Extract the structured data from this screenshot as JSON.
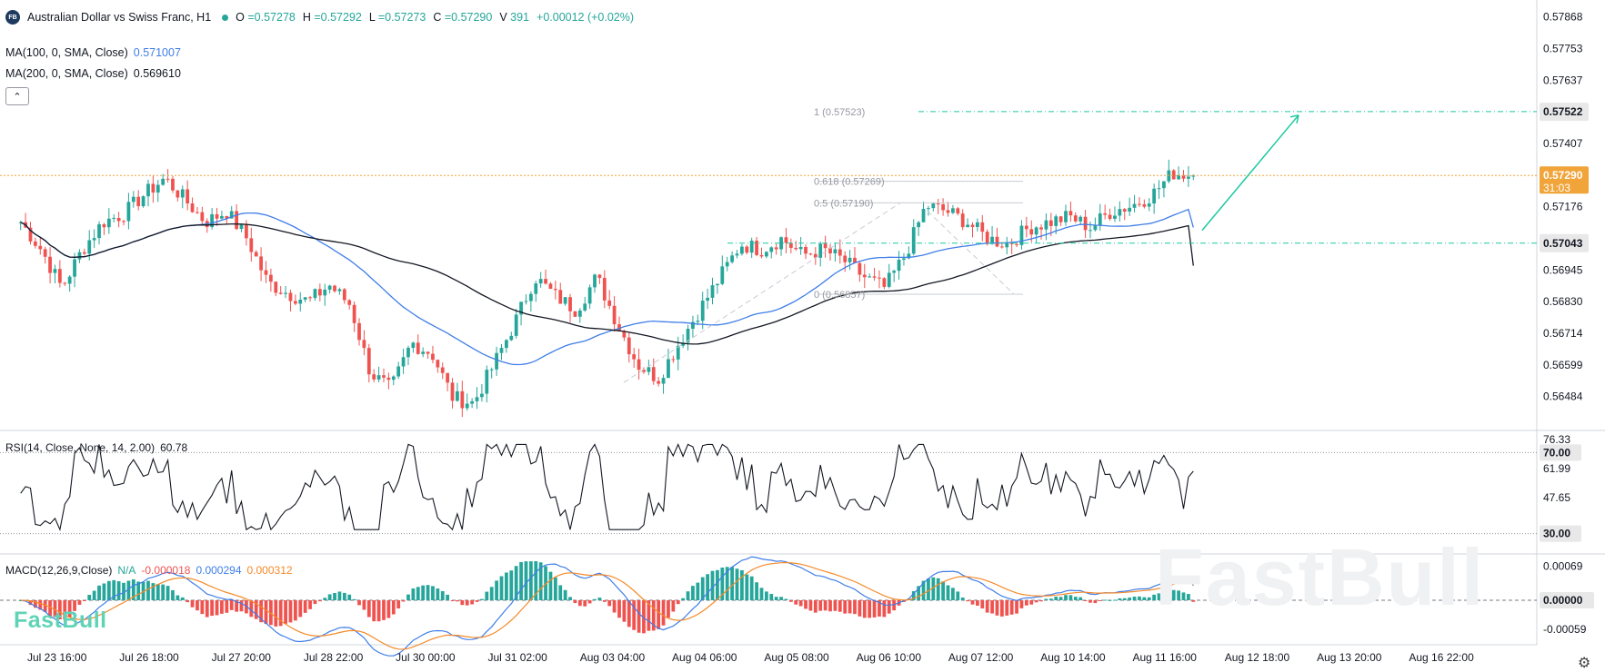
{
  "header": {
    "symbol_badge": "FB",
    "title": "Australian Dollar vs Swiss Franc, H1",
    "o_label": "O",
    "o_value": "=0.57278",
    "h_label": "H",
    "h_value": "=0.57292",
    "l_label": "L",
    "l_value": "=0.57273",
    "c_label": "C",
    "c_value": "=0.57290",
    "v_label": "V",
    "v_value": "391",
    "change": "+0.00012 (+0.02%)"
  },
  "indicators": {
    "ma100_label": "MA(100, 0, SMA, Close)",
    "ma100_value": "0.571007",
    "ma200_label": "MA(200, 0, SMA, Close)",
    "ma200_value": "0.569610",
    "collapse_icon": "chevron-up-icon",
    "rsi_label": "RSI(14, Close, None, 14, 2.00)",
    "rsi_value": "60.78",
    "macd_label": "MACD(12,26,9,Close)",
    "macd_na": "N/A",
    "macd_v1": "-0.000018",
    "macd_v2": "0.000294",
    "macd_v3": "0.000312"
  },
  "watermark": "FastBull",
  "big_watermark": "FastBull",
  "settings_icon": "gear-icon",
  "colors": {
    "up": "#26a69a",
    "down": "#ef5350",
    "ma100": "#3f7ee8",
    "ma200": "#131722",
    "fib": "#1cc9a0",
    "current": "#f0a43a",
    "macd_line": "#3f7ee8",
    "signal_line": "#f58a2a"
  },
  "chart_data": [
    {
      "type": "candlestick",
      "title": "Australian Dollar vs Swiss Franc, H1",
      "price_axis_ticks": [
        "0.57868",
        "0.57753",
        "0.57637",
        "0.57407",
        "0.57176",
        "0.56945",
        "0.56830",
        "0.56714",
        "0.56599",
        "0.56484"
      ],
      "ylim": [
        0.5636,
        0.5793
      ],
      "time_axis_labels": [
        "Jul 23 16:00",
        "Jul 26 18:00",
        "Jul 27 20:00",
        "Jul 28 22:00",
        "Jul 30 00:00",
        "Jul 31 02:00",
        "Aug 03 04:00",
        "Aug 04 06:00",
        "Aug 05 08:00",
        "Aug 06 10:00",
        "Aug 07 12:00",
        "Aug 10 14:00",
        "Aug 11 16:00",
        "Aug 12 18:00",
        "Aug 13 20:00",
        "Aug 16 22:00"
      ],
      "price_tags": [
        {
          "text": "0.57522",
          "kind": "fib"
        },
        {
          "text": "0.57290",
          "sub": "31:03",
          "kind": "current"
        },
        {
          "text": "0.57043",
          "kind": "fib"
        }
      ],
      "fib_labels": [
        {
          "text": "1 (0.57523)",
          "price": 0.57523
        },
        {
          "text": "0.618 (0.57269)",
          "price": 0.57269
        },
        {
          "text": "0.5 (0.57190)",
          "price": 0.5719
        },
        {
          "text": "0 (0.56857)",
          "price": 0.56857
        }
      ],
      "ma100_last": 0.571007,
      "ma200_last": 0.56961,
      "close_last": 0.5729,
      "trajectory_shape": [
        0.5712,
        0.5702,
        0.5688,
        0.5702,
        0.5712,
        0.5715,
        0.5722,
        0.5728,
        0.572,
        0.5712,
        0.5716,
        0.5706,
        0.569,
        0.5686,
        0.5683,
        0.5689,
        0.5682,
        0.5657,
        0.5651,
        0.5668,
        0.5664,
        0.5648,
        0.5646,
        0.566,
        0.5675,
        0.5692,
        0.5685,
        0.568,
        0.5692,
        0.5675,
        0.566,
        0.5655,
        0.5668,
        0.568,
        0.5692,
        0.5704,
        0.5702,
        0.5706,
        0.57,
        0.5702,
        0.5698,
        0.5692,
        0.5688,
        0.57,
        0.5718,
        0.5716,
        0.5712,
        0.5706,
        0.5704,
        0.571,
        0.5712,
        0.5714,
        0.571,
        0.5716,
        0.5718,
        0.5722,
        0.573,
        0.5729
      ]
    },
    {
      "type": "line",
      "title": "RSI(14, Close, None, 14, 2.00)",
      "axis_ticks": [
        "76.33",
        "61.99",
        "47.65"
      ],
      "levels": [
        "70.00",
        "30.00"
      ],
      "last": 60.78
    },
    {
      "type": "histogram",
      "title": "MACD(12,26,9,Close)",
      "axis_ticks": [
        "0.00069",
        "-0.00059"
      ],
      "zero_tag": "0.00000",
      "histogram": -1.8e-05,
      "macd": 0.000294,
      "signal": 0.000312
    }
  ]
}
